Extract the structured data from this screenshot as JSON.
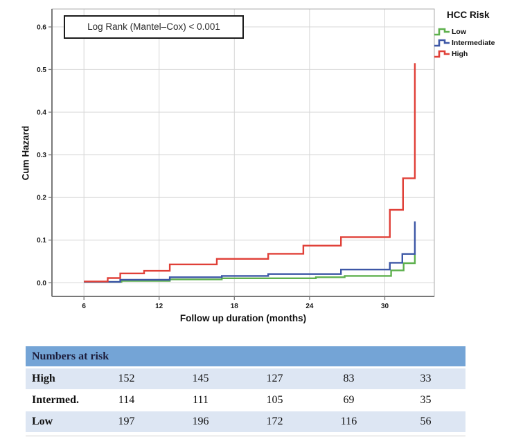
{
  "chart_data": {
    "type": "line",
    "subtype": "step-after",
    "title": "",
    "xlabel": "Follow up duration (months)",
    "ylabel": "Cum Hazard",
    "annotation": "Log Rank (Mantel–Cox) < 0.001",
    "xlim": [
      3.45,
      33.95
    ],
    "ylim": [
      -0.032,
      0.642
    ],
    "xticks": [
      6,
      12,
      18,
      24,
      30
    ],
    "yticks": [
      0.0,
      0.1,
      0.2,
      0.3,
      0.4,
      0.5,
      0.6
    ],
    "grid": true,
    "legend_position": "top-right",
    "legend": {
      "title": "HCC Risk",
      "entries": [
        {
          "label": "Low",
          "color": "#5eb04d"
        },
        {
          "label": "Intermediate",
          "color": "#3d57a6"
        },
        {
          "label": "High",
          "color": "#e04038"
        }
      ]
    },
    "series": [
      {
        "name": "High",
        "color": "#e04038",
        "points": [
          [
            6,
            0.003
          ],
          [
            7.9,
            0.011
          ],
          [
            8.9,
            0.022
          ],
          [
            10.8,
            0.028
          ],
          [
            12.85,
            0.043
          ],
          [
            16.6,
            0.056
          ],
          [
            20.7,
            0.068
          ],
          [
            23.5,
            0.087
          ],
          [
            26.5,
            0.107
          ],
          [
            30.4,
            0.171
          ],
          [
            31.45,
            0.245
          ],
          [
            32.4,
            0.515
          ]
        ]
      },
      {
        "name": "Intermediate",
        "color": "#3d57a6",
        "points": [
          [
            6,
            0.002
          ],
          [
            8.9,
            0.007
          ],
          [
            12.85,
            0.013
          ],
          [
            17,
            0.016
          ],
          [
            20.7,
            0.0205
          ],
          [
            26.5,
            0.031
          ],
          [
            30.4,
            0.047
          ],
          [
            31.4,
            0.0675
          ],
          [
            32.4,
            0.144
          ]
        ]
      },
      {
        "name": "Low",
        "color": "#5eb04d",
        "points": [
          [
            6,
            0.002
          ],
          [
            9,
            0.0045
          ],
          [
            12.85,
            0.008
          ],
          [
            17,
            0.0105
          ],
          [
            24.5,
            0.013
          ],
          [
            26.8,
            0.016
          ],
          [
            30.5,
            0.029
          ],
          [
            31.5,
            0.046
          ],
          [
            32.4,
            0.068
          ]
        ]
      }
    ],
    "colors": {
      "grid": "#d6d6d6",
      "frame": "#ababab",
      "axis": "#787878",
      "tick_label": "#1a1a1a"
    }
  },
  "risk_table": {
    "header": "Numbers at risk",
    "rows": [
      {
        "label": "High",
        "values": [
          "152",
          "145",
          "127",
          "83",
          "33"
        ]
      },
      {
        "label": "Intermed.",
        "values": [
          "114",
          "111",
          "105",
          "69",
          "35"
        ]
      },
      {
        "label": "Low",
        "values": [
          "197",
          "196",
          "172",
          "116",
          "56"
        ]
      }
    ]
  }
}
